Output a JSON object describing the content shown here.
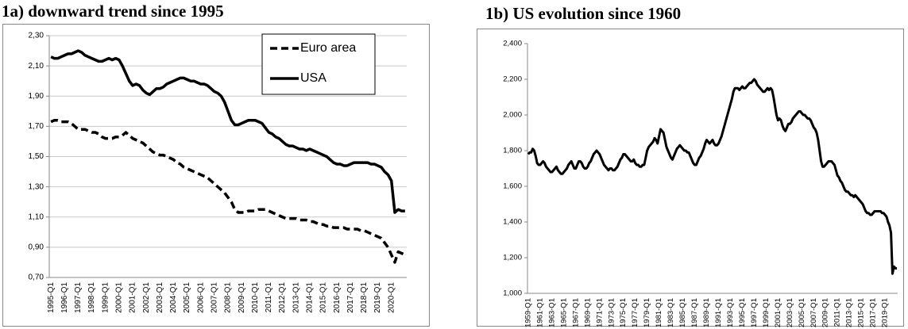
{
  "chart_data": [
    {
      "type": "line",
      "title": "1a) downward trend since 1995",
      "categories": [
        "1995-Q1",
        null,
        null,
        null,
        "1996-Q1",
        null,
        null,
        null,
        "1997-Q1",
        null,
        null,
        null,
        "1998-Q1",
        null,
        null,
        null,
        "1999-Q1",
        null,
        null,
        null,
        "2000-Q1",
        null,
        null,
        null,
        "2001-Q1",
        null,
        null,
        null,
        "2002-Q1",
        null,
        null,
        null,
        "2003-Q1",
        null,
        null,
        null,
        "2004-Q1",
        null,
        null,
        null,
        "2005-Q1",
        null,
        null,
        null,
        "2006-Q1",
        null,
        null,
        null,
        "2007-Q1",
        null,
        null,
        null,
        "2008-Q1",
        null,
        null,
        null,
        "2009-Q1",
        null,
        null,
        null,
        "2010-Q1",
        null,
        null,
        null,
        "2011-Q1",
        null,
        null,
        null,
        "2012-Q1",
        null,
        null,
        null,
        "2013-Q1",
        null,
        null,
        null,
        "2014-Q1",
        null,
        null,
        null,
        "2015-Q1",
        null,
        null,
        null,
        "2016-Q1",
        null,
        null,
        null,
        "2017-Q1",
        null,
        null,
        null,
        "2018-Q1",
        null,
        null,
        null,
        "2019-Q1",
        null,
        null,
        null,
        "2020-Q1",
        null,
        null,
        null,
        null
      ],
      "series": [
        {
          "name": "Euro area",
          "color": "#000000",
          "line_style": "dashed",
          "values": [
            1.73,
            1.74,
            1.74,
            1.73,
            1.73,
            1.73,
            1.72,
            1.7,
            1.68,
            1.68,
            1.68,
            1.67,
            1.66,
            1.66,
            1.65,
            1.63,
            1.62,
            1.62,
            1.62,
            1.63,
            1.63,
            1.64,
            1.66,
            1.64,
            1.62,
            1.61,
            1.6,
            1.59,
            1.57,
            1.55,
            1.53,
            1.52,
            1.51,
            1.51,
            1.5,
            1.49,
            1.48,
            1.46,
            1.45,
            1.43,
            1.42,
            1.41,
            1.4,
            1.39,
            1.38,
            1.37,
            1.36,
            1.34,
            1.32,
            1.3,
            1.28,
            1.26,
            1.23,
            1.2,
            1.15,
            1.13,
            1.13,
            1.13,
            1.14,
            1.14,
            1.14,
            1.15,
            1.15,
            1.15,
            1.14,
            1.13,
            1.12,
            1.11,
            1.1,
            1.09,
            1.09,
            1.09,
            1.09,
            1.08,
            1.08,
            1.08,
            1.07,
            1.07,
            1.06,
            1.05,
            1.05,
            1.04,
            1.04,
            1.03,
            1.03,
            1.03,
            1.03,
            1.02,
            1.02,
            1.02,
            1.02,
            1.01,
            1.01,
            1.0,
            0.99,
            0.98,
            0.97,
            0.96,
            0.93,
            0.9,
            0.85,
            0.8,
            0.87,
            0.86,
            0.85
          ]
        },
        {
          "name": "USA",
          "color": "#000000",
          "line_style": "solid",
          "values": [
            2.16,
            2.15,
            2.15,
            2.16,
            2.17,
            2.18,
            2.18,
            2.19,
            2.2,
            2.19,
            2.17,
            2.16,
            2.15,
            2.14,
            2.13,
            2.13,
            2.14,
            2.15,
            2.14,
            2.15,
            2.14,
            2.1,
            2.05,
            2.0,
            1.97,
            1.98,
            1.97,
            1.94,
            1.92,
            1.91,
            1.93,
            1.95,
            1.95,
            1.96,
            1.98,
            1.99,
            2.0,
            2.01,
            2.02,
            2.02,
            2.01,
            2.0,
            2.0,
            1.99,
            1.98,
            1.98,
            1.97,
            1.95,
            1.93,
            1.92,
            1.9,
            1.86,
            1.8,
            1.74,
            1.71,
            1.71,
            1.72,
            1.73,
            1.74,
            1.74,
            1.74,
            1.73,
            1.72,
            1.69,
            1.66,
            1.65,
            1.63,
            1.62,
            1.6,
            1.58,
            1.57,
            1.57,
            1.56,
            1.55,
            1.55,
            1.54,
            1.55,
            1.54,
            1.53,
            1.52,
            1.51,
            1.5,
            1.48,
            1.46,
            1.45,
            1.45,
            1.44,
            1.44,
            1.45,
            1.46,
            1.46,
            1.46,
            1.46,
            1.46,
            1.45,
            1.45,
            1.44,
            1.43,
            1.4,
            1.38,
            1.34,
            1.13,
            1.15,
            1.14,
            1.14
          ]
        }
      ],
      "ylim": [
        0.7,
        2.3
      ],
      "yticks": [
        {
          "value": 0.7,
          "label": "0,70"
        },
        {
          "value": 0.9,
          "label": "0,90"
        },
        {
          "value": 1.1,
          "label": "1,10"
        },
        {
          "value": 1.3,
          "label": "1,30"
        },
        {
          "value": 1.5,
          "label": "1,50"
        },
        {
          "value": 1.7,
          "label": "1,70"
        },
        {
          "value": 1.9,
          "label": "1,90"
        },
        {
          "value": 2.1,
          "label": "2,10"
        },
        {
          "value": 2.3,
          "label": "2,30"
        }
      ],
      "grid": true,
      "legend": "upper right"
    },
    {
      "type": "line",
      "title": "1b) US evolution since 1960",
      "categories": [
        "1959-Q1",
        null,
        null,
        null,
        null,
        null,
        null,
        null,
        "1961-Q1",
        null,
        null,
        null,
        null,
        null,
        null,
        null,
        "1963-Q1",
        null,
        null,
        null,
        null,
        null,
        null,
        null,
        "1965-Q1",
        null,
        null,
        null,
        null,
        null,
        null,
        null,
        "1967-Q1",
        null,
        null,
        null,
        null,
        null,
        null,
        null,
        "1969-Q1",
        null,
        null,
        null,
        null,
        null,
        null,
        null,
        "1971-Q1",
        null,
        null,
        null,
        null,
        null,
        null,
        null,
        "1973-Q1",
        null,
        null,
        null,
        null,
        null,
        null,
        null,
        "1975-Q1",
        null,
        null,
        null,
        null,
        null,
        null,
        null,
        "1977-Q1",
        null,
        null,
        null,
        null,
        null,
        null,
        null,
        "1979-Q1",
        null,
        null,
        null,
        null,
        null,
        null,
        null,
        "1981-Q1",
        null,
        null,
        null,
        null,
        null,
        null,
        null,
        "1983-Q1",
        null,
        null,
        null,
        null,
        null,
        null,
        null,
        "1985-Q1",
        null,
        null,
        null,
        null,
        null,
        null,
        null,
        "1987-Q1",
        null,
        null,
        null,
        null,
        null,
        null,
        null,
        "1989-Q1",
        null,
        null,
        null,
        null,
        null,
        null,
        null,
        "1991-Q1",
        null,
        null,
        null,
        null,
        null,
        null,
        null,
        "1993-Q1",
        null,
        null,
        null,
        null,
        null,
        null,
        null,
        "1995-Q1",
        null,
        null,
        null,
        null,
        null,
        null,
        null,
        "1997-Q1",
        null,
        null,
        null,
        null,
        null,
        null,
        null,
        "1999-Q1",
        null,
        null,
        null,
        null,
        null,
        null,
        null,
        "2001-Q1",
        null,
        null,
        null,
        null,
        null,
        null,
        null,
        "2003-Q1",
        null,
        null,
        null,
        null,
        null,
        null,
        null,
        "2005-Q1",
        null,
        null,
        null,
        null,
        null,
        null,
        null,
        "2007-Q1",
        null,
        null,
        null,
        null,
        null,
        null,
        null,
        "2009-Q1",
        null,
        null,
        null,
        null,
        null,
        null,
        null,
        "2011-Q1",
        null,
        null,
        null,
        null,
        null,
        null,
        null,
        "2013-Q1",
        null,
        null,
        null,
        null,
        null,
        null,
        null,
        "2015-Q1",
        null,
        null,
        null,
        null,
        null,
        null,
        null,
        "2017-Q1",
        null,
        null,
        null,
        null,
        null,
        null,
        null,
        "2019-Q1",
        null,
        null,
        null,
        null,
        null,
        null,
        null,
        null
      ],
      "series": [
        {
          "color": "#000000",
          "line_style": "solid",
          "values": [
            1780,
            1790,
            1790,
            1810,
            1800,
            1770,
            1730,
            1720,
            1720,
            1730,
            1740,
            1730,
            1710,
            1700,
            1690,
            1680,
            1680,
            1690,
            1700,
            1710,
            1690,
            1680,
            1670,
            1670,
            1680,
            1690,
            1700,
            1720,
            1730,
            1740,
            1720,
            1700,
            1700,
            1720,
            1740,
            1740,
            1730,
            1710,
            1700,
            1700,
            1710,
            1730,
            1740,
            1760,
            1780,
            1790,
            1800,
            1790,
            1780,
            1760,
            1740,
            1720,
            1710,
            1700,
            1690,
            1700,
            1700,
            1690,
            1690,
            1700,
            1710,
            1730,
            1750,
            1760,
            1780,
            1780,
            1770,
            1760,
            1750,
            1740,
            1740,
            1750,
            1730,
            1720,
            1720,
            1710,
            1710,
            1720,
            1720,
            1760,
            1800,
            1820,
            1830,
            1840,
            1850,
            1870,
            1860,
            1840,
            1880,
            1920,
            1910,
            1900,
            1860,
            1820,
            1800,
            1780,
            1760,
            1750,
            1770,
            1790,
            1810,
            1820,
            1830,
            1820,
            1810,
            1800,
            1800,
            1790,
            1790,
            1770,
            1750,
            1730,
            1720,
            1720,
            1740,
            1760,
            1770,
            1790,
            1810,
            1840,
            1860,
            1850,
            1840,
            1850,
            1860,
            1840,
            1830,
            1830,
            1840,
            1860,
            1880,
            1910,
            1940,
            1970,
            2000,
            2030,
            2060,
            2090,
            2130,
            2150,
            2150,
            2150,
            2140,
            2150,
            2160,
            2150,
            2150,
            2160,
            2170,
            2180,
            2180,
            2190,
            2200,
            2190,
            2170,
            2160,
            2150,
            2140,
            2130,
            2130,
            2140,
            2150,
            2140,
            2150,
            2140,
            2100,
            2050,
            2000,
            1970,
            1980,
            1970,
            1940,
            1920,
            1910,
            1930,
            1950,
            1950,
            1960,
            1980,
            1990,
            2000,
            2010,
            2020,
            2020,
            2010,
            2000,
            2000,
            1990,
            1980,
            1980,
            1970,
            1950,
            1930,
            1920,
            1900,
            1860,
            1800,
            1740,
            1710,
            1710,
            1720,
            1730,
            1740,
            1740,
            1740,
            1730,
            1720,
            1690,
            1660,
            1650,
            1630,
            1620,
            1600,
            1580,
            1570,
            1570,
            1560,
            1550,
            1550,
            1540,
            1550,
            1540,
            1530,
            1520,
            1510,
            1500,
            1480,
            1460,
            1450,
            1450,
            1440,
            1440,
            1450,
            1460,
            1460,
            1460,
            1460,
            1460,
            1450,
            1450,
            1440,
            1430,
            1400,
            1380,
            1340,
            1110,
            1150,
            1140,
            1140
          ]
        }
      ],
      "ylim": [
        1000,
        2400
      ],
      "yticks": [
        {
          "value": 1000,
          "label": "1,000"
        },
        {
          "value": 1200,
          "label": "1,200"
        },
        {
          "value": 1400,
          "label": "1,400"
        },
        {
          "value": 1600,
          "label": "1,600"
        },
        {
          "value": 1800,
          "label": "1,800"
        },
        {
          "value": 2000,
          "label": "2,000"
        },
        {
          "value": 2200,
          "label": "2,200"
        },
        {
          "value": 2400,
          "label": "2,400"
        }
      ],
      "grid": false
    }
  ]
}
